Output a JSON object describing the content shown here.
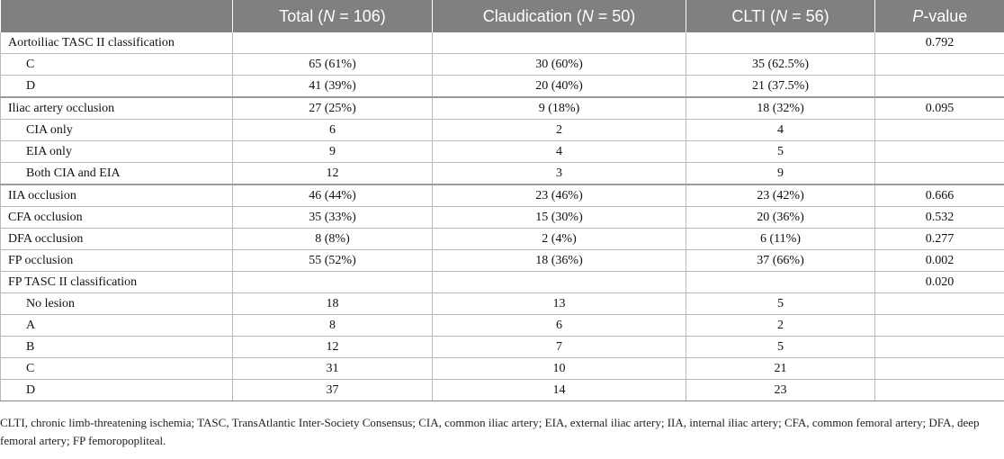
{
  "header": {
    "col0": "",
    "total_prefix": "Total (",
    "total_n": "N",
    "total_suffix": " = 106)",
    "claud_prefix": "Claudication (",
    "claud_n": "N",
    "claud_suffix": " = 50)",
    "clti_prefix": "CLTI (",
    "clti_n": "N",
    "clti_suffix": " = 56)",
    "p_prefix": "P",
    "p_suffix": "-value"
  },
  "rows": [
    {
      "label": "Aortoiliac TASC II classification",
      "total": "",
      "claud": "",
      "clti": "",
      "p": "0.792"
    },
    {
      "label": "C",
      "total": "65 (61%)",
      "claud": "30 (60%)",
      "clti": "35 (62.5%)",
      "p": ""
    },
    {
      "label": "D",
      "total": "41 (39%)",
      "claud": "20 (40%)",
      "clti": "21 (37.5%)",
      "p": ""
    },
    {
      "label": "Iliac artery occlusion",
      "total": "27 (25%)",
      "claud": "9 (18%)",
      "clti": "18 (32%)",
      "p": "0.095"
    },
    {
      "label": "CIA only",
      "total": "6",
      "claud": "2",
      "clti": "4",
      "p": ""
    },
    {
      "label": "EIA only",
      "total": "9",
      "claud": "4",
      "clti": "5",
      "p": ""
    },
    {
      "label": "Both CIA and EIA",
      "total": "12",
      "claud": "3",
      "clti": "9",
      "p": ""
    },
    {
      "label": "IIA occlusion",
      "total": "46 (44%)",
      "claud": "23 (46%)",
      "clti": "23 (42%)",
      "p": "0.666"
    },
    {
      "label": "CFA occlusion",
      "total": "35 (33%)",
      "claud": "15 (30%)",
      "clti": "20 (36%)",
      "p": "0.532"
    },
    {
      "label": "DFA occlusion",
      "total": "8 (8%)",
      "claud": "2 (4%)",
      "clti": "6 (11%)",
      "p": "0.277"
    },
    {
      "label": "FP occlusion",
      "total": "55 (52%)",
      "claud": "18 (36%)",
      "clti": "37 (66%)",
      "p": "0.002"
    },
    {
      "label": "FP TASC II classification",
      "total": "",
      "claud": "",
      "clti": "",
      "p": "0.020"
    },
    {
      "label": "No lesion",
      "total": "18",
      "claud": "13",
      "clti": "5",
      "p": ""
    },
    {
      "label": "A",
      "total": "8",
      "claud": "6",
      "clti": "2",
      "p": ""
    },
    {
      "label": "B",
      "total": "12",
      "claud": "7",
      "clti": "5",
      "p": ""
    },
    {
      "label": "C",
      "total": "31",
      "claud": "10",
      "clti": "21",
      "p": ""
    },
    {
      "label": "D",
      "total": "37",
      "claud": "14",
      "clti": "23",
      "p": ""
    }
  ],
  "footnote": "CLTI, chronic limb-threatening ischemia; TASC, TransAtlantic Inter-Society Consensus; CIA, common iliac artery; EIA, external iliac artery; IIA, internal iliac artery; CFA, common femoral artery; DFA, deep femoral artery; FP femoropopliteal."
}
